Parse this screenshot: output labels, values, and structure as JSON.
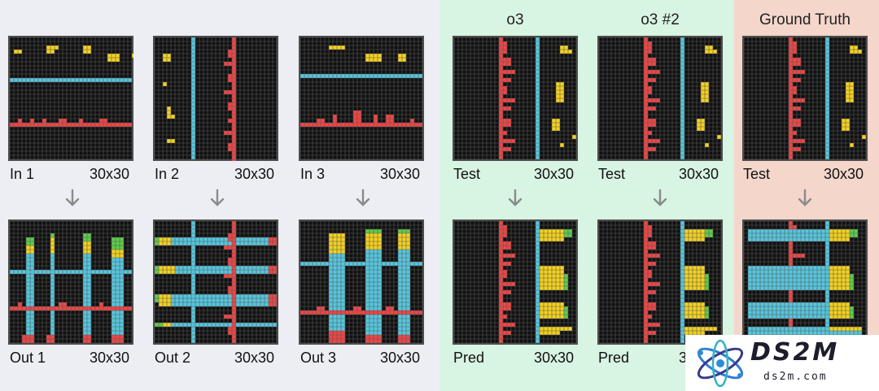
{
  "headers": {
    "o3": "o3",
    "o3_2": "o3 #2",
    "ground_truth": "Ground Truth"
  },
  "colors": {
    "background": "#111111",
    "grid_line": "#5a5a5a",
    "border": "#4b4b4b",
    "red": "#ef4444",
    "yellow": "#f4d11e",
    "cyan": "#55c6de",
    "green": "#5ccc4a",
    "panel_examples": "#eceef4",
    "panel_o3": "#d8f4e2",
    "panel_gt": "#f4d6cb"
  },
  "grid_size": 30,
  "labels": {
    "in1": "In 1",
    "in2": "In 2",
    "in3": "In 3",
    "out1": "Out 1",
    "out2": "Out 2",
    "out3": "Out 3",
    "test_o3": "Test",
    "test_o3b": "Test",
    "test_gt": "Test",
    "pred_o3": "Pred",
    "pred_o3b": "Pred",
    "size": "30x30"
  },
  "logo": {
    "name": "DS2M",
    "url": "ds2m.com"
  },
  "grids": {
    "in1": [
      [
        "y",
        1,
        3,
        2,
        1
      ],
      [
        "y",
        9,
        2,
        2,
        2
      ],
      [
        "y",
        18,
        2,
        2,
        2
      ],
      [
        "y",
        24,
        4,
        3,
        2
      ],
      [
        "y",
        11,
        2,
        1,
        1
      ],
      [
        "y",
        30,
        4,
        1,
        1
      ],
      [
        "c",
        0,
        10,
        30,
        1
      ],
      [
        "r",
        2,
        20,
        1,
        1
      ],
      [
        "r",
        5,
        20,
        1,
        1
      ],
      [
        "r",
        8,
        20,
        1,
        1
      ],
      [
        "r",
        12,
        20,
        2,
        1
      ],
      [
        "r",
        17,
        20,
        1,
        1
      ],
      [
        "r",
        22,
        20,
        2,
        1
      ],
      [
        "r",
        0,
        21,
        30,
        1
      ]
    ],
    "in2": [
      [
        "y",
        2,
        4,
        2,
        2
      ],
      [
        "y",
        2,
        11,
        1,
        1
      ],
      [
        "y",
        3,
        17,
        1,
        3
      ],
      [
        "y",
        4,
        19,
        1,
        1
      ],
      [
        "y",
        3,
        25,
        2,
        1
      ],
      [
        "c",
        9,
        0,
        1,
        30
      ],
      [
        "r",
        19,
        0,
        1,
        1
      ],
      [
        "r",
        19,
        1,
        1,
        30
      ],
      [
        "r",
        18,
        3,
        1,
        2
      ],
      [
        "r",
        17,
        6,
        2,
        1
      ],
      [
        "r",
        18,
        9,
        1,
        2
      ],
      [
        "r",
        17,
        13,
        2,
        1
      ],
      [
        "r",
        18,
        16,
        1,
        2
      ],
      [
        "r",
        18,
        20,
        1,
        1
      ],
      [
        "r",
        17,
        23,
        2,
        1
      ],
      [
        "r",
        18,
        26,
        1,
        2
      ]
    ],
    "in3": [
      [
        "y",
        7,
        2,
        4,
        1
      ],
      [
        "y",
        16,
        4,
        4,
        2
      ],
      [
        "y",
        24,
        4,
        2,
        2
      ],
      [
        "c",
        0,
        9,
        30,
        1
      ],
      [
        "r",
        8,
        19,
        1,
        2
      ],
      [
        "r",
        13,
        18,
        2,
        3
      ],
      [
        "r",
        18,
        19,
        1,
        2
      ],
      [
        "r",
        21,
        19,
        2,
        2
      ],
      [
        "r",
        27,
        20,
        1,
        1
      ],
      [
        "r",
        4,
        20,
        2,
        1
      ],
      [
        "r",
        0,
        21,
        30,
        1
      ]
    ],
    "out1": [
      [
        "g",
        4,
        4,
        2,
        2
      ],
      [
        "g",
        10,
        3,
        1,
        1
      ],
      [
        "g",
        18,
        3,
        2,
        2
      ],
      [
        "g",
        25,
        4,
        3,
        3
      ],
      [
        "y",
        4,
        6,
        2,
        2
      ],
      [
        "y",
        10,
        4,
        1,
        4
      ],
      [
        "y",
        18,
        5,
        2,
        3
      ],
      [
        "y",
        25,
        7,
        3,
        2
      ],
      [
        "c",
        4,
        8,
        2,
        22
      ],
      [
        "c",
        10,
        8,
        1,
        22
      ],
      [
        "c",
        18,
        8,
        2,
        22
      ],
      [
        "c",
        25,
        9,
        3,
        21
      ],
      [
        "c",
        0,
        12,
        30,
        1
      ],
      [
        "r",
        0,
        21,
        30,
        1
      ],
      [
        "r",
        2,
        20,
        1,
        1
      ],
      [
        "r",
        12,
        20,
        2,
        1
      ],
      [
        "r",
        22,
        20,
        1,
        1
      ],
      [
        "r",
        3,
        28,
        3,
        2
      ],
      [
        "r",
        9,
        28,
        2,
        2
      ],
      [
        "r",
        18,
        28,
        2,
        2
      ],
      [
        "r",
        25,
        28,
        3,
        2
      ]
    ],
    "out2": [
      [
        "y",
        1,
        4,
        3,
        2
      ],
      [
        "y",
        1,
        11,
        4,
        2
      ],
      [
        "y",
        1,
        18,
        3,
        3
      ],
      [
        "y",
        2,
        25,
        2,
        1
      ],
      [
        "g",
        0,
        4,
        1,
        2
      ],
      [
        "g",
        0,
        11,
        1,
        2
      ],
      [
        "g",
        0,
        18,
        1,
        2
      ],
      [
        "g",
        0,
        25,
        2,
        1
      ],
      [
        "c",
        9,
        0,
        1,
        30
      ],
      [
        "c",
        4,
        4,
        26,
        2
      ],
      [
        "c",
        5,
        11,
        25,
        2
      ],
      [
        "c",
        4,
        18,
        26,
        3
      ],
      [
        "c",
        4,
        25,
        26,
        1
      ],
      [
        "r",
        19,
        0,
        1,
        30
      ],
      [
        "r",
        18,
        3,
        1,
        2
      ],
      [
        "r",
        17,
        6,
        2,
        1
      ],
      [
        "r",
        18,
        9,
        1,
        2
      ],
      [
        "r",
        17,
        13,
        2,
        1
      ],
      [
        "r",
        18,
        16,
        1,
        2
      ],
      [
        "r",
        17,
        23,
        2,
        1
      ],
      [
        "r",
        18,
        26,
        1,
        2
      ],
      [
        "r",
        28,
        4,
        2,
        2
      ],
      [
        "r",
        28,
        11,
        2,
        2
      ],
      [
        "r",
        28,
        18,
        2,
        3
      ]
    ],
    "out3": [
      [
        "y",
        7,
        3,
        4,
        5
      ],
      [
        "y",
        16,
        3,
        4,
        4
      ],
      [
        "y",
        24,
        3,
        3,
        4
      ],
      [
        "g",
        16,
        2,
        4,
        1
      ],
      [
        "g",
        24,
        2,
        3,
        1
      ],
      [
        "c",
        0,
        10,
        30,
        1
      ],
      [
        "c",
        7,
        8,
        4,
        22
      ],
      [
        "c",
        16,
        7,
        4,
        23
      ],
      [
        "c",
        24,
        7,
        3,
        23
      ],
      [
        "r",
        0,
        22,
        30,
        1
      ],
      [
        "r",
        4,
        21,
        2,
        1
      ],
      [
        "r",
        13,
        21,
        2,
        1
      ],
      [
        "r",
        21,
        21,
        2,
        1
      ],
      [
        "r",
        7,
        27,
        4,
        3
      ],
      [
        "r",
        16,
        28,
        4,
        2
      ],
      [
        "r",
        24,
        28,
        3,
        2
      ]
    ],
    "test_o3": [
      [
        "r",
        11,
        0,
        1,
        30
      ],
      [
        "r",
        12,
        1,
        1,
        3
      ],
      [
        "r",
        12,
        5,
        2,
        2
      ],
      [
        "r",
        12,
        8,
        3,
        1
      ],
      [
        "r",
        12,
        10,
        2,
        1
      ],
      [
        "r",
        12,
        12,
        1,
        2
      ],
      [
        "r",
        12,
        15,
        3,
        1
      ],
      [
        "r",
        12,
        17,
        2,
        1
      ],
      [
        "r",
        12,
        20,
        2,
        2
      ],
      [
        "r",
        12,
        23,
        1,
        1
      ],
      [
        "r",
        12,
        25,
        3,
        1
      ],
      [
        "r",
        12,
        27,
        2,
        1
      ],
      [
        "c",
        20,
        0,
        1,
        30
      ],
      [
        "y",
        26,
        2,
        2,
        2
      ],
      [
        "y",
        28,
        3,
        1,
        1
      ],
      [
        "y",
        25,
        11,
        2,
        5
      ],
      [
        "y",
        24,
        20,
        2,
        3
      ],
      [
        "y",
        26,
        26,
        1,
        1
      ],
      [
        "y",
        29,
        24,
        1,
        1
      ]
    ],
    "test_o3b": [
      [
        "r",
        11,
        0,
        1,
        30
      ],
      [
        "r",
        12,
        1,
        1,
        3
      ],
      [
        "r",
        12,
        5,
        2,
        2
      ],
      [
        "r",
        12,
        8,
        3,
        1
      ],
      [
        "r",
        12,
        10,
        2,
        1
      ],
      [
        "r",
        12,
        12,
        1,
        2
      ],
      [
        "r",
        12,
        15,
        3,
        1
      ],
      [
        "r",
        12,
        17,
        2,
        1
      ],
      [
        "r",
        12,
        20,
        2,
        2
      ],
      [
        "r",
        12,
        23,
        1,
        1
      ],
      [
        "r",
        12,
        25,
        3,
        1
      ],
      [
        "r",
        12,
        27,
        2,
        1
      ],
      [
        "c",
        20,
        0,
        1,
        30
      ],
      [
        "y",
        26,
        2,
        2,
        2
      ],
      [
        "y",
        28,
        3,
        1,
        1
      ],
      [
        "y",
        25,
        11,
        2,
        5
      ],
      [
        "y",
        24,
        20,
        2,
        3
      ],
      [
        "y",
        26,
        26,
        1,
        1
      ],
      [
        "y",
        29,
        24,
        1,
        1
      ]
    ],
    "test_gt": [
      [
        "r",
        11,
        0,
        1,
        30
      ],
      [
        "r",
        12,
        1,
        1,
        3
      ],
      [
        "r",
        12,
        5,
        2,
        2
      ],
      [
        "r",
        12,
        8,
        3,
        1
      ],
      [
        "r",
        12,
        10,
        2,
        1
      ],
      [
        "r",
        12,
        12,
        1,
        2
      ],
      [
        "r",
        12,
        15,
        3,
        1
      ],
      [
        "r",
        12,
        17,
        2,
        1
      ],
      [
        "r",
        12,
        20,
        2,
        2
      ],
      [
        "r",
        12,
        23,
        1,
        1
      ],
      [
        "r",
        12,
        25,
        3,
        1
      ],
      [
        "r",
        12,
        27,
        2,
        1
      ],
      [
        "c",
        20,
        0,
        1,
        30
      ],
      [
        "y",
        26,
        2,
        2,
        2
      ],
      [
        "y",
        28,
        3,
        1,
        1
      ],
      [
        "y",
        25,
        11,
        2,
        5
      ],
      [
        "y",
        24,
        20,
        2,
        3
      ],
      [
        "y",
        26,
        26,
        1,
        1
      ],
      [
        "y",
        29,
        24,
        1,
        1
      ]
    ],
    "pred_o3": [
      [
        "r",
        11,
        0,
        1,
        30
      ],
      [
        "r",
        12,
        1,
        1,
        3
      ],
      [
        "r",
        12,
        5,
        2,
        2
      ],
      [
        "r",
        12,
        8,
        3,
        1
      ],
      [
        "r",
        12,
        10,
        2,
        1
      ],
      [
        "r",
        12,
        12,
        1,
        2
      ],
      [
        "r",
        12,
        15,
        3,
        1
      ],
      [
        "r",
        12,
        17,
        2,
        1
      ],
      [
        "r",
        12,
        20,
        2,
        2
      ],
      [
        "r",
        12,
        23,
        1,
        1
      ],
      [
        "r",
        12,
        25,
        3,
        1
      ],
      [
        "r",
        12,
        27,
        2,
        1
      ],
      [
        "c",
        20,
        0,
        1,
        30
      ],
      [
        "y",
        21,
        2,
        6,
        3
      ],
      [
        "g",
        27,
        2,
        2,
        2
      ],
      [
        "y",
        21,
        11,
        6,
        6
      ],
      [
        "g",
        27,
        13,
        1,
        4
      ],
      [
        "y",
        21,
        20,
        6,
        4
      ],
      [
        "g",
        27,
        21,
        1,
        3
      ],
      [
        "y",
        21,
        26,
        8,
        1
      ],
      [
        "y",
        21,
        27,
        5,
        1
      ]
    ],
    "pred_o3b": [
      [
        "r",
        11,
        0,
        1,
        30
      ],
      [
        "r",
        12,
        1,
        1,
        3
      ],
      [
        "r",
        12,
        5,
        2,
        2
      ],
      [
        "r",
        12,
        8,
        3,
        1
      ],
      [
        "r",
        12,
        10,
        2,
        1
      ],
      [
        "r",
        12,
        12,
        1,
        2
      ],
      [
        "r",
        12,
        15,
        3,
        1
      ],
      [
        "r",
        12,
        17,
        2,
        1
      ],
      [
        "r",
        12,
        20,
        2,
        2
      ],
      [
        "r",
        12,
        23,
        1,
        1
      ],
      [
        "r",
        12,
        25,
        3,
        1
      ],
      [
        "r",
        12,
        27,
        2,
        1
      ],
      [
        "c",
        20,
        0,
        1,
        30
      ],
      [
        "y",
        21,
        2,
        5,
        3
      ],
      [
        "g",
        26,
        2,
        2,
        2
      ],
      [
        "y",
        21,
        11,
        5,
        6
      ],
      [
        "g",
        26,
        13,
        1,
        4
      ],
      [
        "y",
        21,
        20,
        5,
        4
      ],
      [
        "g",
        26,
        21,
        1,
        3
      ],
      [
        "y",
        21,
        26,
        8,
        1
      ],
      [
        "y",
        21,
        27,
        5,
        1
      ]
    ],
    "pred_gt": [
      [
        "r",
        11,
        0,
        1,
        30
      ],
      [
        "r",
        12,
        1,
        1,
        3
      ],
      [
        "r",
        12,
        8,
        3,
        1
      ],
      [
        "r",
        12,
        15,
        3,
        1
      ],
      [
        "r",
        12,
        23,
        1,
        1
      ],
      [
        "c",
        20,
        0,
        1,
        30
      ],
      [
        "c",
        1,
        2,
        20,
        3
      ],
      [
        "y",
        21,
        2,
        5,
        3
      ],
      [
        "g",
        26,
        2,
        2,
        2
      ],
      [
        "c",
        1,
        11,
        20,
        6
      ],
      [
        "y",
        21,
        11,
        5,
        6
      ],
      [
        "g",
        26,
        13,
        1,
        4
      ],
      [
        "c",
        1,
        20,
        20,
        4
      ],
      [
        "y",
        21,
        20,
        5,
        4
      ],
      [
        "g",
        26,
        21,
        1,
        3
      ],
      [
        "c",
        1,
        26,
        28,
        2
      ],
      [
        "y",
        21,
        26,
        8,
        1
      ]
    ]
  }
}
